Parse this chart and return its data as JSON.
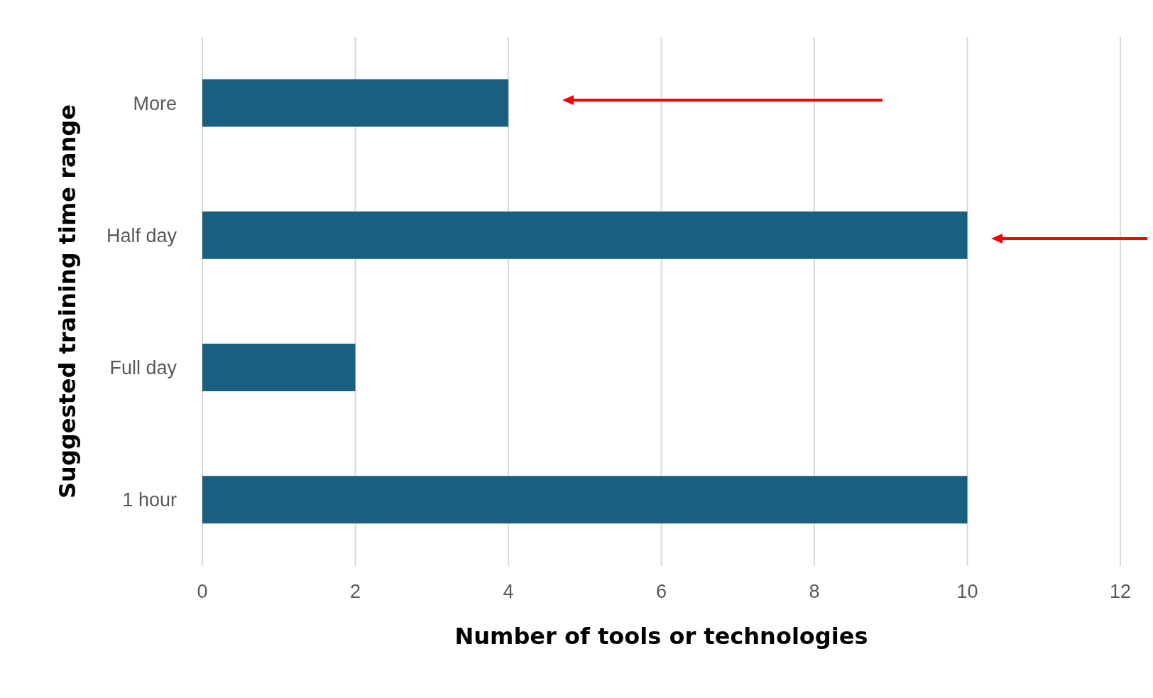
{
  "chart_data": {
    "type": "bar",
    "orientation": "horizontal",
    "xlabel": "Number of tools or technologies",
    "ylabel": "Suggested training time range",
    "categories": [
      "More",
      "Half day",
      "Full day",
      "1 hour"
    ],
    "values": [
      4,
      10,
      2,
      10
    ],
    "color": "#1a5f80",
    "xlim": [
      0,
      12
    ],
    "xticks": [
      0,
      2,
      4,
      6,
      8,
      10,
      12
    ],
    "grid": "x"
  }
}
